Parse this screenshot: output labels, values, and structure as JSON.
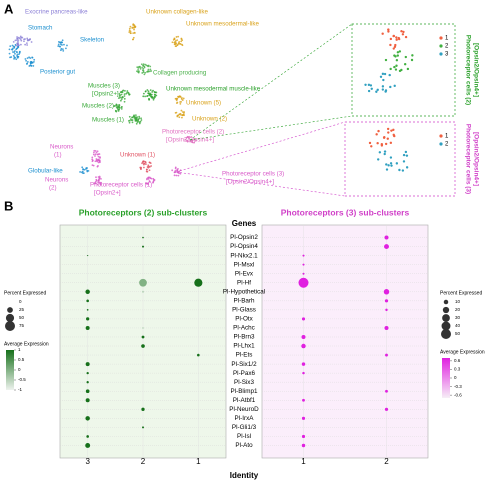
{
  "panel_a": {
    "letter": "A",
    "clusters": [
      {
        "label": [
          "Exocrine pancreas-like"
        ],
        "color": "#8b7fd6"
      },
      {
        "label": [
          "Stomach"
        ],
        "color": "#1b8fcf"
      },
      {
        "label": [
          "Skeleton"
        ],
        "color": "#1b8fcf"
      },
      {
        "label": [
          "Posterior gut"
        ],
        "color": "#1b8fcf"
      },
      {
        "label": [
          "Muscles (3)",
          "[Opsin2+]"
        ],
        "color": "#38a838"
      },
      {
        "label": [
          "Muscles (2)"
        ],
        "color": "#38a838"
      },
      {
        "label": [
          "Muscles (1)"
        ],
        "color": "#38a838"
      },
      {
        "label": [
          "Unknown collagen-like"
        ],
        "color": "#d9a21a"
      },
      {
        "label": [
          "Unknown mesodermal-like"
        ],
        "color": "#d9a21a"
      },
      {
        "label": [
          "Collagen producing"
        ],
        "color": "#4ab04a"
      },
      {
        "label": [
          "Unknown mesodermal muscle-like"
        ],
        "color": "#2aa02a"
      },
      {
        "label": [
          "Unknown (5)"
        ],
        "color": "#d9a21a"
      },
      {
        "label": [
          "Unknown (2)"
        ],
        "color": "#d9a21a"
      },
      {
        "label": [
          "Photoreceptor cells (2)",
          "[Opsin2/Opsin4+]"
        ],
        "color": "#e070c0"
      },
      {
        "label": [
          "Neurons",
          "(1)"
        ],
        "color": "#d858c8"
      },
      {
        "label": [
          "Globular-like"
        ],
        "color": "#1b8fcf"
      },
      {
        "label": [
          "Neurons",
          "(2)"
        ],
        "color": "#d858c8"
      },
      {
        "label": [
          "Unknown (1)"
        ],
        "color": "#e05060"
      },
      {
        "label": [
          "Photoreceptor cells (1)",
          "[Opsin2+]"
        ],
        "color": "#d858c8"
      },
      {
        "label": [
          "Photoreceptor cells (3)",
          "[Opsin2/Opsin4+]"
        ],
        "color": "#d858c8"
      }
    ],
    "zooms": [
      {
        "title": [
          "Photoreceptor cells (2)",
          "[Opsin2/Opsin4+]"
        ],
        "color": "#2aa02a",
        "subclusters": [
          {
            "name": "1",
            "color": "#f06040"
          },
          {
            "name": "2",
            "color": "#40b040"
          },
          {
            "name": "3",
            "color": "#30a0c0"
          }
        ]
      },
      {
        "title": [
          "Photoreceptor cells (3)",
          "[Opsin2/Opsin4+]"
        ],
        "color": "#d040c8",
        "subclusters": [
          {
            "name": "1",
            "color": "#f06040"
          },
          {
            "name": "2",
            "color": "#30a0c0"
          }
        ]
      }
    ]
  },
  "panel_b_letter": "B",
  "chart_data": [
    {
      "type": "dotplot",
      "title": "Photoreceptors (2) sub-clusters",
      "title_color": "#2aa02a",
      "genes_title": "Genes",
      "xlabel": "Identity",
      "genes": [
        "Pl-Opsin2",
        "Pl-Opsin4",
        "Pl-Nkx2.1",
        "Pl-Msxl",
        "Pl-Evx",
        "Pl-Hf",
        "Pl-Hypothetical",
        "Pl-Barh",
        "Pl-Glass",
        "Pl-Otx",
        "Pl-Achc",
        "Pl-Brn3",
        "Pl-Lhx1",
        "Pl-Ets",
        "Pl-Six1/2",
        "Pl-Pax6",
        "Pl-Six3",
        "Pl-Blimp1",
        "Pl-Atbf1",
        "Pl-NeuroD",
        "Pl-IrxA",
        "Pl-Gli1/3",
        "Pl-Isl",
        "Pl-Ato"
      ],
      "series": [
        {
          "name": "3",
          "pct": [
            0,
            0,
            1,
            0,
            0,
            5,
            15,
            5,
            2,
            8,
            12,
            0,
            0,
            0,
            12,
            4,
            4,
            10,
            12,
            0,
            15,
            0,
            5,
            18
          ],
          "avg": [
            -0.5,
            -0.5,
            1,
            -0.5,
            -0.5,
            -1,
            1,
            1,
            1,
            1,
            1,
            -0.5,
            -0.5,
            -0.5,
            1,
            1,
            1,
            1,
            1,
            -0.5,
            1,
            -0.5,
            1,
            1
          ]
        },
        {
          "name": "2",
          "pct": [
            2,
            3,
            0,
            0,
            0,
            45,
            3,
            0,
            0,
            0,
            2,
            6,
            10,
            0,
            0,
            0,
            0,
            0,
            0,
            8,
            0,
            3,
            0,
            0
          ],
          "avg": [
            1,
            1,
            -0.5,
            -0.5,
            -0.5,
            0,
            -0.5,
            -0.5,
            -0.5,
            -0.5,
            -0.5,
            1,
            1,
            -0.5,
            -0.5,
            -0.5,
            -0.5,
            -0.5,
            -0.5,
            1,
            -0.5,
            1,
            -0.5,
            -0.5
          ]
        },
        {
          "name": "1",
          "pct": [
            0,
            0,
            0,
            0,
            0,
            50,
            0,
            0,
            0,
            0,
            0,
            0,
            0,
            5,
            0,
            0,
            0,
            0,
            0,
            0,
            0,
            0,
            0,
            0
          ],
          "avg": [
            -0.5,
            -0.5,
            -0.5,
            -0.5,
            -0.5,
            1,
            -0.5,
            -0.5,
            -0.5,
            -0.5,
            -0.5,
            -0.5,
            -0.5,
            1,
            -0.5,
            -0.5,
            -0.5,
            -0.5,
            -0.5,
            -0.5,
            -0.5,
            -0.5,
            -0.5,
            -0.5
          ]
        }
      ],
      "size_title": "Percent Expressed",
      "size_lim": [
        0,
        75
      ],
      "size_ticks": [
        0,
        25,
        50,
        75
      ],
      "color_title": "Average Expression",
      "color_lim": [
        -1,
        1
      ],
      "color_ticks": [
        1,
        0.5,
        0,
        -0.5,
        -1
      ],
      "color_range": [
        "#eef3ee",
        "#16701a"
      ],
      "background": "#eef7ea"
    },
    {
      "type": "dotplot",
      "title": "Photoreceptors (3) sub-clusters",
      "title_color": "#d040c8",
      "series": [
        {
          "name": "1",
          "pct": [
            0,
            0,
            2,
            2,
            2,
            50,
            0,
            0,
            0,
            5,
            0,
            8,
            10,
            0,
            6,
            3,
            0,
            0,
            4,
            0,
            5,
            0,
            5,
            6
          ],
          "avg": [
            -0.7,
            -0.7,
            0.7,
            0.7,
            0.7,
            0.7,
            -0.7,
            -0.7,
            -0.7,
            0.7,
            -0.7,
            0.7,
            0.7,
            -0.7,
            0.7,
            0.7,
            -0.7,
            -0.7,
            0.7,
            -0.7,
            0.7,
            -0.7,
            0.7,
            0.7
          ]
        },
        {
          "name": "2",
          "pct": [
            8,
            12,
            0,
            0,
            0,
            3,
            15,
            5,
            3,
            0,
            8,
            0,
            0,
            4,
            0,
            0,
            0,
            4,
            0,
            5,
            0,
            0,
            0,
            0
          ],
          "avg": [
            0.7,
            0.7,
            -0.7,
            -0.7,
            -0.7,
            -0.7,
            0.7,
            0.7,
            0.7,
            -0.7,
            0.7,
            -0.7,
            -0.7,
            0.7,
            -0.7,
            -0.7,
            -0.7,
            0.7,
            -0.7,
            0.7,
            -0.7,
            -0.7,
            -0.7,
            -0.7
          ]
        }
      ],
      "size_title": "Percent Expressed",
      "size_lim": [
        0,
        50
      ],
      "size_ticks": [
        10,
        20,
        30,
        40,
        50
      ],
      "color_title": "Average Expression",
      "color_lim": [
        -0.7,
        0.7
      ],
      "color_ticks": [
        0.6,
        0.3,
        0,
        -0.3,
        -0.6
      ],
      "color_range": [
        "#f6eef6",
        "#e020e0"
      ],
      "background": "#fbeefb"
    }
  ]
}
